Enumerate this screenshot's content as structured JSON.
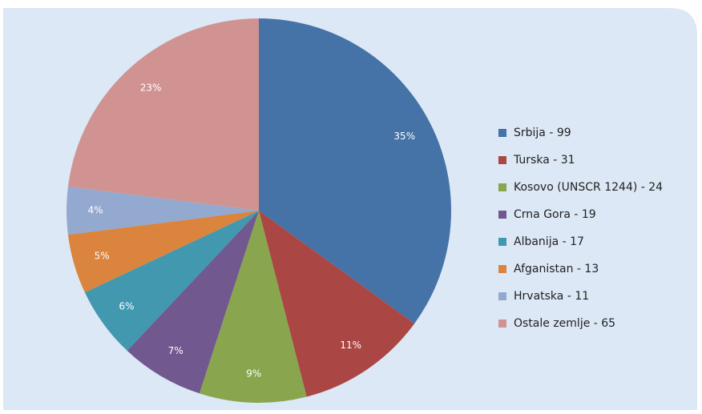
{
  "chart_data": {
    "type": "pie",
    "categories": [
      "Srbija - 99",
      "Turska - 31",
      "Kosovo (UNSCR 1244) - 24",
      "Crna Gora - 19",
      "Albanija - 17",
      "Afganistan - 13",
      "Hrvatska - 11",
      "Ostale zemlje - 65"
    ],
    "values": [
      35,
      11,
      9,
      7,
      6,
      5,
      4,
      23
    ],
    "value_labels": [
      "35%",
      "11%",
      "9%",
      "7%",
      "6%",
      "5%",
      "4%",
      "23%"
    ],
    "colors": [
      "#4572a7",
      "#aa4643",
      "#89a54e",
      "#71588f",
      "#4198af",
      "#db843d",
      "#93a9cf",
      "#d19392"
    ],
    "legend": "right"
  }
}
